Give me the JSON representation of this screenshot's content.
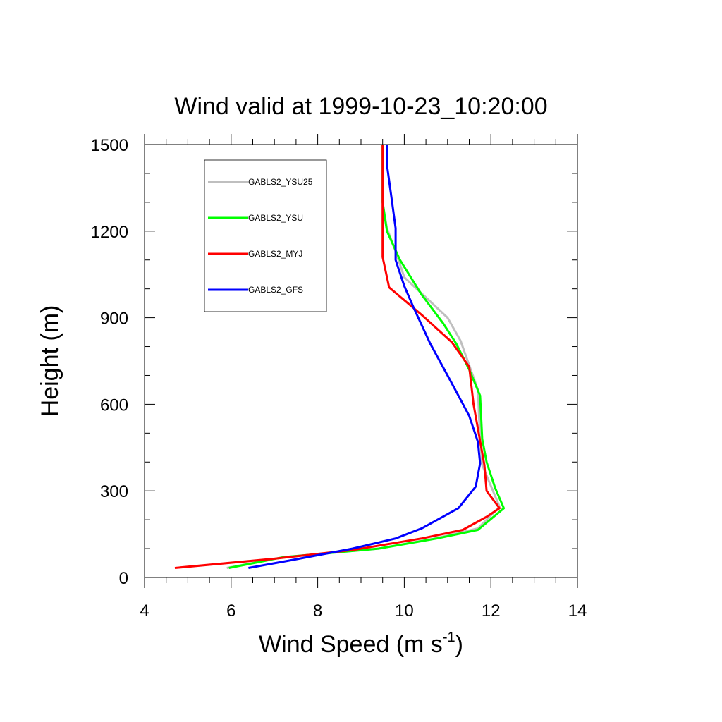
{
  "chart_data": {
    "type": "line",
    "title": "Wind valid at 1999-10-23_10:20:00",
    "xlabel": "Wind Speed (m s",
    "xlabel_superscript": "-1",
    "xlabel_suffix": ")",
    "ylabel": "Height (m)",
    "xlim": [
      4,
      14
    ],
    "ylim": [
      0,
      1500
    ],
    "xticks": [
      4,
      6,
      8,
      10,
      12,
      14
    ],
    "yticks": [
      0,
      300,
      600,
      900,
      1200,
      1500
    ],
    "xminor": 0.5,
    "yminor": 100,
    "grid": false,
    "legend_position": "top-left",
    "series": [
      {
        "name": "GABLS2_YSU25",
        "color": "#bfbfbf",
        "points": [
          [
            5.9,
            33
          ],
          [
            7.2,
            70
          ],
          [
            9.4,
            100
          ],
          [
            10.7,
            135
          ],
          [
            11.7,
            170
          ],
          [
            12.2,
            245
          ],
          [
            11.8,
            390
          ],
          [
            11.75,
            480
          ],
          [
            11.7,
            650
          ],
          [
            11.3,
            820
          ],
          [
            11.0,
            900
          ],
          [
            10.5,
            970
          ],
          [
            10.0,
            1040
          ],
          [
            9.8,
            1130
          ],
          [
            9.6,
            1210
          ],
          [
            9.5,
            1300
          ],
          [
            9.5,
            1500
          ]
        ]
      },
      {
        "name": "GABLS2_YSU",
        "color": "#00ff00",
        "points": [
          [
            5.95,
            33
          ],
          [
            7.2,
            70
          ],
          [
            9.4,
            100
          ],
          [
            10.75,
            135
          ],
          [
            11.7,
            165
          ],
          [
            12.3,
            240
          ],
          [
            12.1,
            310
          ],
          [
            11.9,
            400
          ],
          [
            11.8,
            480
          ],
          [
            11.75,
            630
          ],
          [
            11.5,
            720
          ],
          [
            11.2,
            810
          ],
          [
            10.9,
            880
          ],
          [
            10.4,
            980
          ],
          [
            9.9,
            1100
          ],
          [
            9.6,
            1200
          ],
          [
            9.5,
            1300
          ],
          [
            9.5,
            1500
          ]
        ]
      },
      {
        "name": "GABLS2_MYJ",
        "color": "#ff0000",
        "points": [
          [
            4.7,
            33
          ],
          [
            7.0,
            65
          ],
          [
            8.8,
            95
          ],
          [
            10.4,
            135
          ],
          [
            11.35,
            165
          ],
          [
            11.9,
            210
          ],
          [
            12.2,
            240
          ],
          [
            11.9,
            300
          ],
          [
            11.85,
            390
          ],
          [
            11.6,
            600
          ],
          [
            11.5,
            730
          ],
          [
            11.1,
            815
          ],
          [
            10.4,
            910
          ],
          [
            9.65,
            1005
          ],
          [
            9.5,
            1110
          ],
          [
            9.5,
            1300
          ],
          [
            9.5,
            1500
          ]
        ]
      },
      {
        "name": "GABLS2_GFS",
        "color": "#0000ff",
        "points": [
          [
            6.4,
            33
          ],
          [
            7.4,
            60
          ],
          [
            8.8,
            100
          ],
          [
            9.8,
            135
          ],
          [
            10.4,
            170
          ],
          [
            11.25,
            240
          ],
          [
            11.65,
            315
          ],
          [
            11.75,
            395
          ],
          [
            11.7,
            470
          ],
          [
            11.5,
            560
          ],
          [
            11.0,
            700
          ],
          [
            10.6,
            810
          ],
          [
            10.2,
            940
          ],
          [
            10.0,
            1010
          ],
          [
            9.8,
            1100
          ],
          [
            9.8,
            1210
          ],
          [
            9.7,
            1320
          ],
          [
            9.6,
            1430
          ],
          [
            9.6,
            1500
          ]
        ]
      }
    ]
  }
}
